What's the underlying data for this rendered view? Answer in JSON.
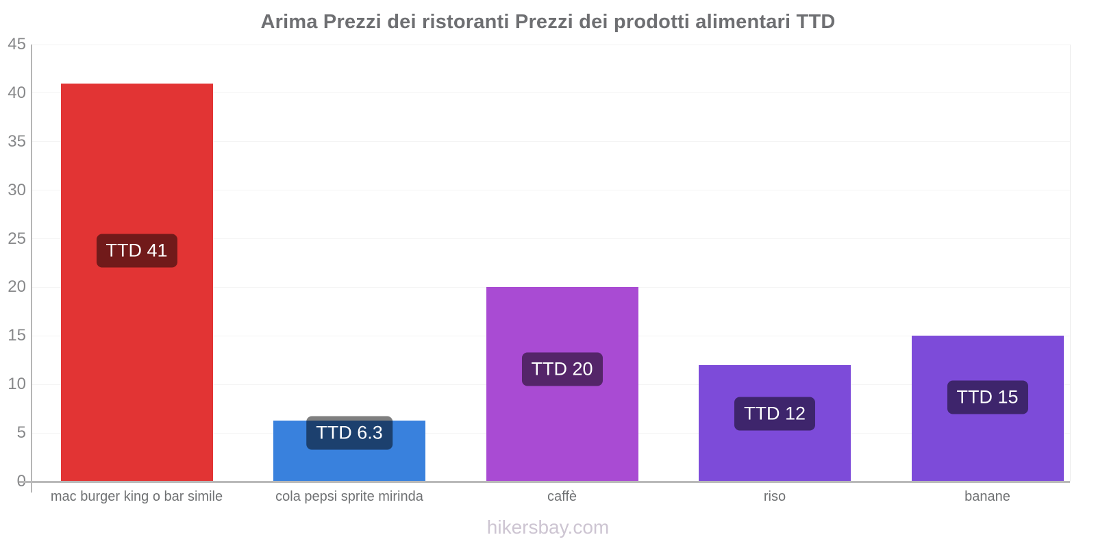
{
  "title": "Arima Prezzi dei ristoranti Prezzi dei prodotti alimentari TTD",
  "watermark": "hikersbay.com",
  "chart_data": {
    "type": "bar",
    "title": "Arima Prezzi dei ristoranti Prezzi dei prodotti alimentari TTD",
    "categories": [
      "mac burger king o bar simile",
      "cola pepsi sprite mirinda",
      "caffè",
      "riso",
      "banane"
    ],
    "values": [
      41,
      6.3,
      20,
      12,
      15
    ],
    "value_labels": [
      "TTD 41",
      "TTD 6.3",
      "TTD 20",
      "TTD 12",
      "TTD 15"
    ],
    "bar_colors": [
      "#e23434",
      "#3981dd",
      "#a94bd3",
      "#7d4bd9",
      "#7d4bd9"
    ],
    "currency": "TTD",
    "xlabel": "",
    "ylabel": "",
    "ylim": [
      0,
      45
    ],
    "yticks": [
      0,
      5,
      10,
      15,
      20,
      25,
      30,
      35,
      40,
      45
    ],
    "grid": true,
    "legend": "none",
    "value_label_style": {
      "bg": "rgba(0,0,0,0.5)",
      "text": "#ffffff"
    }
  }
}
